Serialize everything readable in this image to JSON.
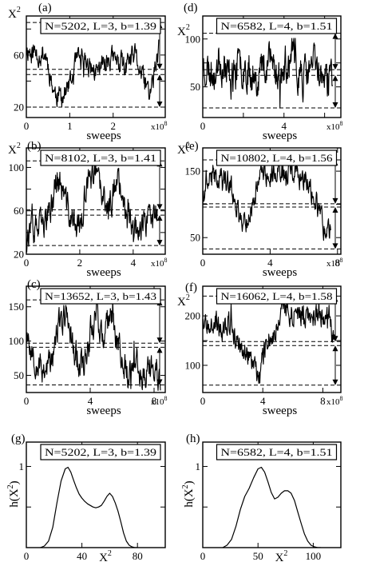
{
  "chart_data": [
    {
      "id": "a",
      "panel_label": "(a)",
      "type": "line",
      "legend": "N=5202, L=3, b=1.39",
      "ylabel": "X",
      "ylabel_sup": "2",
      "xlabel": "sweeps",
      "x_multiplier": "x10",
      "x_multiplier_sup": "8",
      "xlim": [
        0,
        3.2
      ],
      "ylim": [
        12,
        90
      ],
      "xticks": [
        0,
        1,
        2
      ],
      "xtick_labels": [
        "0",
        "1",
        "2"
      ],
      "yticks": [
        20,
        40,
        60,
        80
      ],
      "ytick_labels": [
        "20",
        "",
        "60",
        ""
      ],
      "dashed_lines": [
        20,
        45,
        49,
        85
      ],
      "arrows": [
        [
          49,
          85
        ],
        [
          20,
          45
        ]
      ],
      "series": [
        {
          "x_end": 3.05,
          "seed": 11,
          "states": [
            {
              "x": 0,
              "y": 65
            },
            {
              "x": 0.15,
              "y": 62
            },
            {
              "x": 0.45,
              "y": 60
            },
            {
              "x": 0.55,
              "y": 45
            },
            {
              "x": 0.65,
              "y": 30
            },
            {
              "x": 0.85,
              "y": 28
            },
            {
              "x": 1.05,
              "y": 40
            },
            {
              "x": 1.15,
              "y": 55
            },
            {
              "x": 1.4,
              "y": 55
            },
            {
              "x": 1.6,
              "y": 45
            },
            {
              "x": 1.85,
              "y": 58
            },
            {
              "x": 2.1,
              "y": 55
            },
            {
              "x": 2.3,
              "y": 50
            },
            {
              "x": 2.5,
              "y": 60
            },
            {
              "x": 2.7,
              "y": 40
            },
            {
              "x": 2.85,
              "y": 30
            },
            {
              "x": 3.05,
              "y": 62
            }
          ],
          "noise": 7
        }
      ]
    },
    {
      "id": "d",
      "panel_label": "(d)",
      "type": "line",
      "legend": "N=6582, L=4, b=1.51",
      "ylabel": "X",
      "ylabel_sup": "2",
      "xlabel": "sweeps",
      "x_multiplier": "x10",
      "x_multiplier_sup": "8",
      "xlim": [
        0,
        6.8
      ],
      "ylim": [
        18,
        124
      ],
      "xticks": [
        0,
        2,
        4,
        6
      ],
      "xtick_labels": [
        "0",
        "",
        "4",
        ""
      ],
      "yticks": [
        50,
        75,
        100
      ],
      "ytick_labels": [
        "50",
        "",
        "100"
      ],
      "dashed_lines": [
        28,
        62,
        68,
        106
      ],
      "arrows": [
        [
          68,
          106
        ],
        [
          28,
          62
        ]
      ],
      "series": [
        {
          "x_end": 6.4,
          "seed": 23,
          "states": [
            {
              "x": 0,
              "y": 75
            },
            {
              "x": 0.4,
              "y": 65
            },
            {
              "x": 0.8,
              "y": 80
            },
            {
              "x": 1.4,
              "y": 60
            },
            {
              "x": 2.0,
              "y": 75
            },
            {
              "x": 2.6,
              "y": 60
            },
            {
              "x": 3.2,
              "y": 80
            },
            {
              "x": 3.8,
              "y": 62
            },
            {
              "x": 4.4,
              "y": 78
            },
            {
              "x": 5.0,
              "y": 58
            },
            {
              "x": 5.5,
              "y": 75
            },
            {
              "x": 6.0,
              "y": 55
            },
            {
              "x": 6.4,
              "y": 60
            }
          ],
          "noise": 16
        }
      ]
    },
    {
      "id": "b",
      "panel_label": "(b)",
      "type": "line",
      "legend": "N=8102, L=3, b=1.41",
      "ylabel": "X",
      "ylabel_sup": "2",
      "xlabel": "sweeps",
      "x_multiplier": "x10",
      "x_multiplier_sup": "8",
      "xlim": [
        0,
        5.2
      ],
      "ylim": [
        20,
        118
      ],
      "xticks": [
        0,
        2,
        4
      ],
      "xtick_labels": [
        "0",
        "2",
        "4"
      ],
      "yticks": [
        20,
        40,
        60,
        80,
        100
      ],
      "ytick_labels": [
        "20",
        "",
        "60",
        "",
        "100"
      ],
      "dashed_lines": [
        28,
        56,
        61,
        106
      ],
      "arrows": [
        [
          61,
          106
        ],
        [
          28,
          56
        ]
      ],
      "series": [
        {
          "x_end": 4.9,
          "seed": 37,
          "states": [
            {
              "x": 0,
              "y": 40
            },
            {
              "x": 0.6,
              "y": 45
            },
            {
              "x": 0.9,
              "y": 60
            },
            {
              "x": 1.15,
              "y": 90
            },
            {
              "x": 1.4,
              "y": 75
            },
            {
              "x": 1.7,
              "y": 50
            },
            {
              "x": 2.0,
              "y": 45
            },
            {
              "x": 2.3,
              "y": 85
            },
            {
              "x": 2.6,
              "y": 95
            },
            {
              "x": 2.85,
              "y": 70
            },
            {
              "x": 3.1,
              "y": 60
            },
            {
              "x": 3.35,
              "y": 90
            },
            {
              "x": 3.6,
              "y": 80
            },
            {
              "x": 3.8,
              "y": 55
            },
            {
              "x": 4.1,
              "y": 45
            },
            {
              "x": 4.5,
              "y": 48
            },
            {
              "x": 4.9,
              "y": 55
            }
          ],
          "noise": 11
        }
      ]
    },
    {
      "id": "e",
      "panel_label": "(e)",
      "type": "line",
      "legend": "N=10802, L=4, b=1.56",
      "ylabel": "X",
      "ylabel_sup": "2",
      "xlabel": "sweeps",
      "x_multiplier": "x10",
      "x_multiplier_sup": "8",
      "xlim": [
        0,
        8.2
      ],
      "ylim": [
        25,
        185
      ],
      "xticks": [
        0,
        4,
        8
      ],
      "xtick_labels": [
        "0",
        "4",
        "8"
      ],
      "yticks": [
        50,
        100,
        150
      ],
      "ytick_labels": [
        "50",
        "",
        "150"
      ],
      "dashed_lines": [
        33,
        96,
        101,
        167
      ],
      "arrows": [
        [
          101,
          167
        ],
        [
          33,
          96
        ]
      ],
      "series": [
        {
          "x_end": 7.6,
          "seed": 41,
          "states": [
            {
              "x": 0,
              "y": 105
            },
            {
              "x": 0.3,
              "y": 140
            },
            {
              "x": 1.0,
              "y": 145
            },
            {
              "x": 1.5,
              "y": 135
            },
            {
              "x": 1.9,
              "y": 110
            },
            {
              "x": 2.2,
              "y": 80
            },
            {
              "x": 2.6,
              "y": 75
            },
            {
              "x": 3.0,
              "y": 100
            },
            {
              "x": 3.3,
              "y": 145
            },
            {
              "x": 4.5,
              "y": 150
            },
            {
              "x": 5.5,
              "y": 145
            },
            {
              "x": 6.3,
              "y": 130
            },
            {
              "x": 6.8,
              "y": 100
            },
            {
              "x": 7.2,
              "y": 65
            },
            {
              "x": 7.6,
              "y": 55
            }
          ],
          "noise": 14
        }
      ]
    },
    {
      "id": "c",
      "panel_label": "(c)",
      "type": "line",
      "legend": "N=13652, L=3, b=1.43",
      "ylabel": "",
      "ylabel_sup": "",
      "xlabel": "sweeps",
      "x_multiplier": "x10",
      "x_multiplier_sup": "8",
      "xlim": [
        0,
        8.7
      ],
      "ylim": [
        25,
        180
      ],
      "xticks": [
        0,
        4,
        8
      ],
      "xtick_labels": [
        "0",
        "4",
        "8"
      ],
      "yticks": [
        50,
        100,
        150
      ],
      "ytick_labels": [
        "50",
        "100",
        "150"
      ],
      "dashed_lines": [
        36,
        91,
        97,
        160
      ],
      "arrows": [
        [
          97,
          160
        ],
        [
          36,
          91
        ]
      ],
      "series": [
        {
          "x_end": 8.4,
          "seed": 53,
          "states": [
            {
              "x": 0,
              "y": 120
            },
            {
              "x": 0.4,
              "y": 80
            },
            {
              "x": 1.0,
              "y": 60
            },
            {
              "x": 1.6,
              "y": 70
            },
            {
              "x": 2.0,
              "y": 120
            },
            {
              "x": 2.5,
              "y": 140
            },
            {
              "x": 3.0,
              "y": 90
            },
            {
              "x": 3.5,
              "y": 60
            },
            {
              "x": 4.0,
              "y": 110
            },
            {
              "x": 4.4,
              "y": 150
            },
            {
              "x": 4.8,
              "y": 95
            },
            {
              "x": 5.3,
              "y": 140
            },
            {
              "x": 5.8,
              "y": 90
            },
            {
              "x": 6.3,
              "y": 55
            },
            {
              "x": 6.8,
              "y": 70
            },
            {
              "x": 7.3,
              "y": 50
            },
            {
              "x": 7.8,
              "y": 60
            },
            {
              "x": 8.4,
              "y": 50
            }
          ],
          "noise": 18
        }
      ]
    },
    {
      "id": "f",
      "panel_label": "(f)",
      "type": "line",
      "legend": "N=16062, L=4, b=1.58",
      "ylabel": "X",
      "ylabel_sup": "2",
      "xlabel": "sweeps",
      "x_multiplier": "x10",
      "x_multiplier_sup": "8",
      "xlim": [
        0,
        9.2
      ],
      "ylim": [
        45,
        260
      ],
      "xticks": [
        0,
        4,
        8
      ],
      "xtick_labels": [
        "0",
        "4",
        "8"
      ],
      "yticks": [
        100,
        150,
        200
      ],
      "ytick_labels": [
        "100",
        "",
        "200"
      ],
      "dashed_lines": [
        60,
        140,
        148,
        240
      ],
      "arrows": [
        [
          148,
          240
        ],
        [
          60,
          140
        ]
      ],
      "series": [
        {
          "x_end": 8.8,
          "seed": 67,
          "states": [
            {
              "x": 0,
              "y": 190
            },
            {
              "x": 0.8,
              "y": 195
            },
            {
              "x": 1.3,
              "y": 160
            },
            {
              "x": 1.8,
              "y": 195
            },
            {
              "x": 2.2,
              "y": 150
            },
            {
              "x": 2.6,
              "y": 135
            },
            {
              "x": 3.0,
              "y": 120
            },
            {
              "x": 3.4,
              "y": 95
            },
            {
              "x": 3.7,
              "y": 75
            },
            {
              "x": 4.0,
              "y": 120
            },
            {
              "x": 4.3,
              "y": 160
            },
            {
              "x": 4.7,
              "y": 155
            },
            {
              "x": 5.1,
              "y": 205
            },
            {
              "x": 6.0,
              "y": 210
            },
            {
              "x": 7.0,
              "y": 200
            },
            {
              "x": 8.0,
              "y": 205
            },
            {
              "x": 8.5,
              "y": 180
            },
            {
              "x": 8.8,
              "y": 130
            }
          ],
          "noise": 19
        }
      ]
    },
    {
      "id": "g",
      "panel_label": "(g)",
      "type": "line",
      "legend": "N=5202, L=3, b=1.39",
      "ylabel": "h(X",
      "ylabel_sup": "2",
      "ylabel_close": ")",
      "xlabel": "X",
      "xlabel_sup": "2",
      "xlim": [
        0,
        100
      ],
      "ylim": [
        0,
        1.3
      ],
      "xticks": [
        0,
        40,
        80
      ],
      "xtick_labels": [
        "0",
        "40",
        "80"
      ],
      "yticks": [
        0,
        0.5,
        1
      ],
      "ytick_labels": [
        "",
        "",
        "1"
      ],
      "series": [
        {
          "x": [
            10,
            13,
            16,
            19,
            22,
            25,
            28,
            30,
            32,
            34,
            36,
            38,
            40,
            42,
            44,
            46,
            48,
            50,
            52,
            54,
            56,
            58,
            60,
            62,
            64,
            66,
            68,
            70,
            72,
            74,
            76,
            78,
            80
          ],
          "y": [
            0,
            0.02,
            0.08,
            0.25,
            0.55,
            0.82,
            0.97,
            0.99,
            0.93,
            0.83,
            0.74,
            0.66,
            0.61,
            0.57,
            0.54,
            0.52,
            0.5,
            0.49,
            0.5,
            0.52,
            0.57,
            0.63,
            0.67,
            0.63,
            0.55,
            0.45,
            0.32,
            0.18,
            0.08,
            0.03,
            0.01,
            0,
            0
          ]
        }
      ]
    },
    {
      "id": "h",
      "panel_label": "(h)",
      "type": "line",
      "legend": "N=6582, L=4, b=1.51",
      "ylabel": "h(X",
      "ylabel_sup": "2",
      "ylabel_close": ")",
      "xlabel": "X",
      "xlabel_sup": "2",
      "xlim": [
        0,
        125
      ],
      "ylim": [
        0,
        1.3
      ],
      "xticks": [
        0,
        50,
        100
      ],
      "xtick_labels": [
        "0",
        "50",
        "100"
      ],
      "yticks": [
        0,
        0.5,
        1
      ],
      "ytick_labels": [
        "",
        "",
        "1"
      ],
      "series": [
        {
          "x": [
            18,
            22,
            26,
            30,
            34,
            38,
            42,
            46,
            50,
            53,
            56,
            59,
            62,
            65,
            68,
            71,
            74,
            77,
            80,
            83,
            86,
            89,
            92,
            95,
            98,
            101,
            104,
            107
          ],
          "y": [
            0,
            0.03,
            0.1,
            0.26,
            0.47,
            0.63,
            0.73,
            0.86,
            0.97,
            0.99,
            0.93,
            0.81,
            0.68,
            0.6,
            0.62,
            0.67,
            0.7,
            0.7,
            0.67,
            0.58,
            0.44,
            0.3,
            0.17,
            0.08,
            0.03,
            0.01,
            0,
            0
          ]
        }
      ]
    }
  ]
}
